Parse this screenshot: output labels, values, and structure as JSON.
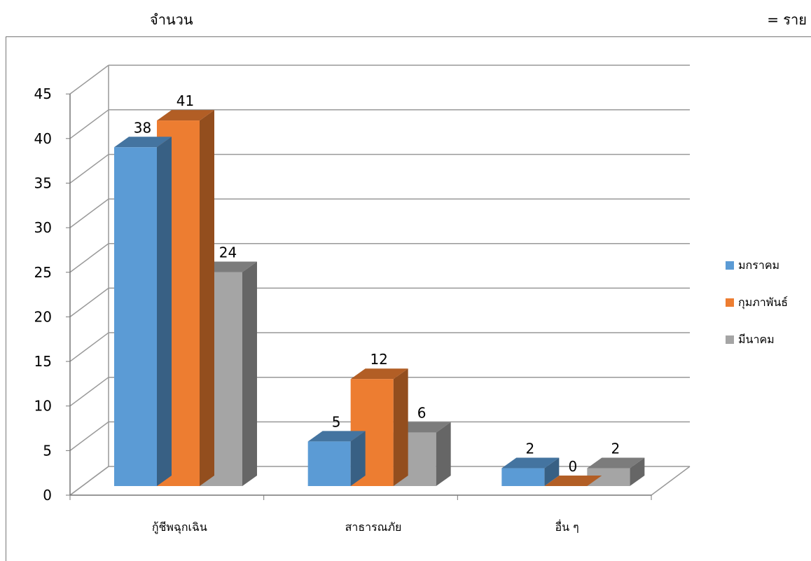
{
  "header": {
    "ylabel": "จำนวน",
    "unit": "= ราย"
  },
  "chart_data": {
    "type": "bar",
    "categories": [
      "กู้ชีพฉุกเฉิน",
      "สาธารณภัย",
      "อื่น ๆ"
    ],
    "series": [
      {
        "name": "มกราคม",
        "values": [
          38,
          5,
          2
        ],
        "color": "#5b9bd5"
      },
      {
        "name": "กุมภาพันธ์",
        "values": [
          41,
          12,
          0
        ],
        "color": "#ed7d31"
      },
      {
        "name": "มีนาคม",
        "values": [
          24,
          6,
          2
        ],
        "color": "#a5a5a5"
      }
    ],
    "ylim": [
      0,
      45
    ],
    "yticks": [
      0,
      5,
      10,
      15,
      20,
      25,
      30,
      35,
      40,
      45
    ],
    "grid": true,
    "legend": "right",
    "style": "3d-clustered-column"
  }
}
